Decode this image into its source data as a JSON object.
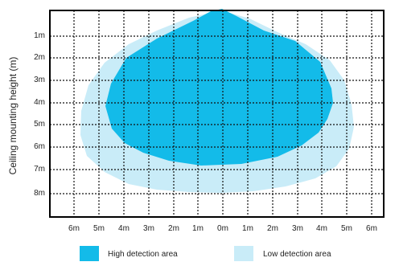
{
  "diagram": {
    "y_axis_title": "Ceiling mounting height (m)",
    "y_labels": [
      "1m",
      "2m",
      "3m",
      "4m",
      "5m",
      "6m",
      "7m",
      "8m"
    ],
    "x_labels": [
      "6m",
      "5m",
      "4m",
      "3m",
      "2m",
      "1m",
      "0m",
      "1m",
      "2m",
      "3m",
      "4m",
      "5m",
      "6m"
    ],
    "colors": {
      "high": "#13bbe9",
      "low": "#c9ecf8",
      "grid": "#111111",
      "frame": "#000000"
    },
    "legend": [
      {
        "label": "High detection area",
        "color": "#13bbe9"
      },
      {
        "label": "Low detection area",
        "color": "#c9ecf8"
      }
    ]
  }
}
